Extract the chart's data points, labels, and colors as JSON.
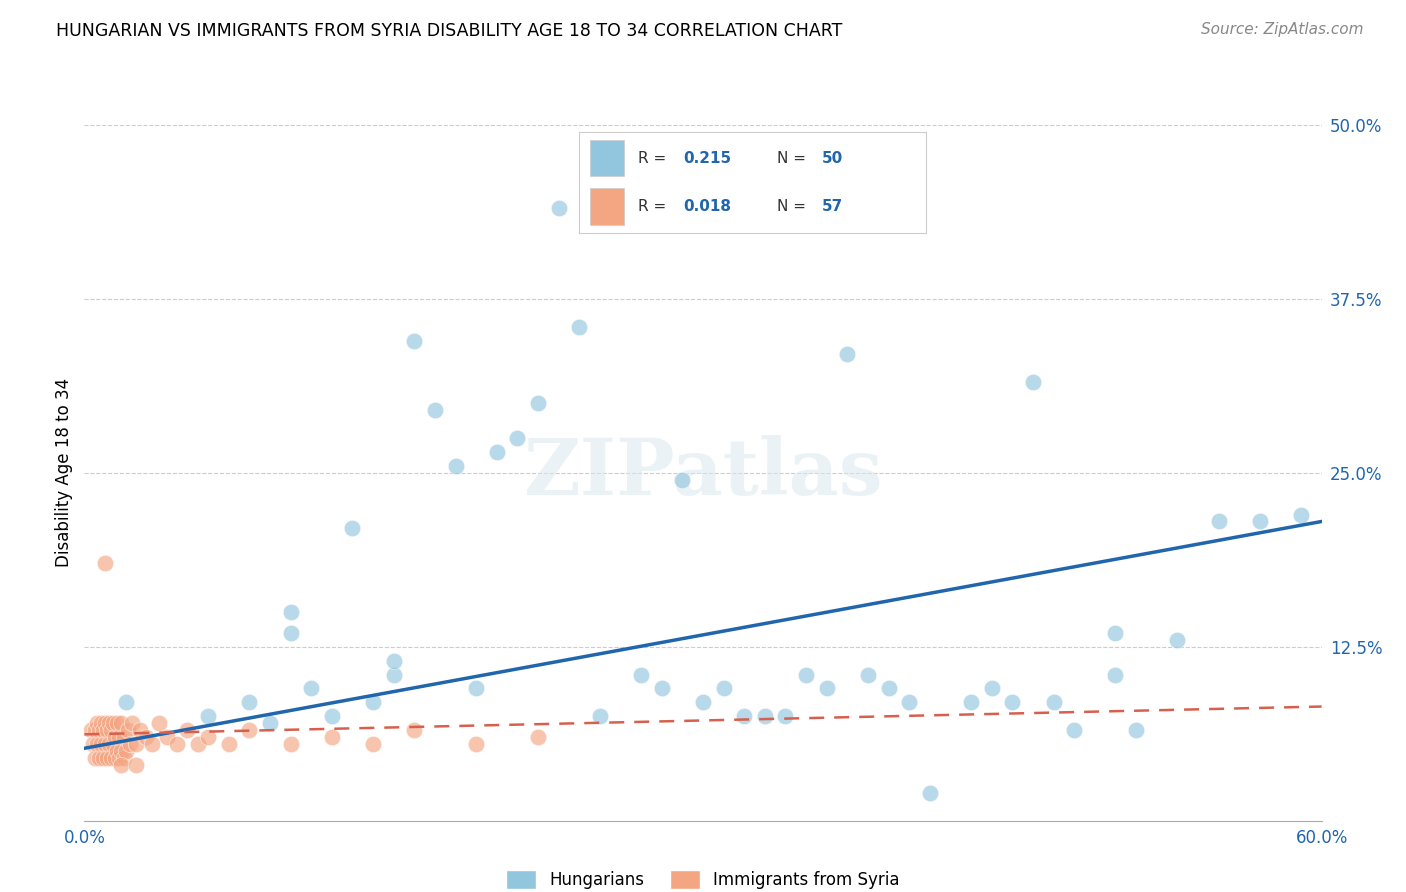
{
  "title": "HUNGARIAN VS IMMIGRANTS FROM SYRIA DISABILITY AGE 18 TO 34 CORRELATION CHART",
  "source": "Source: ZipAtlas.com",
  "ylabel": "Disability Age 18 to 34",
  "xlim": [
    0.0,
    0.6
  ],
  "ylim": [
    0.0,
    0.5
  ],
  "xticks": [
    0.0,
    0.1,
    0.2,
    0.3,
    0.4,
    0.5,
    0.6
  ],
  "xticklabels": [
    "0.0%",
    "",
    "",
    "",
    "",
    "",
    "60.0%"
  ],
  "yticks_right": [
    0.0,
    0.125,
    0.25,
    0.375,
    0.5
  ],
  "yticklabels_right": [
    "",
    "12.5%",
    "25.0%",
    "37.5%",
    "50.0%"
  ],
  "grid_yticks": [
    0.125,
    0.25,
    0.375,
    0.5
  ],
  "blue_color": "#92c5de",
  "blue_line_color": "#2166ac",
  "pink_color": "#f4a582",
  "pink_line_color": "#d6604d",
  "watermark": "ZIPatlas",
  "blue_scatter_x": [
    0.02,
    0.06,
    0.08,
    0.09,
    0.1,
    0.1,
    0.11,
    0.12,
    0.13,
    0.14,
    0.15,
    0.15,
    0.16,
    0.17,
    0.18,
    0.19,
    0.2,
    0.21,
    0.22,
    0.23,
    0.24,
    0.25,
    0.27,
    0.28,
    0.29,
    0.3,
    0.31,
    0.32,
    0.33,
    0.34,
    0.35,
    0.36,
    0.37,
    0.38,
    0.39,
    0.4,
    0.41,
    0.43,
    0.44,
    0.45,
    0.46,
    0.47,
    0.48,
    0.5,
    0.5,
    0.51,
    0.53,
    0.55,
    0.57,
    0.59
  ],
  "blue_scatter_y": [
    0.085,
    0.075,
    0.085,
    0.07,
    0.135,
    0.15,
    0.095,
    0.075,
    0.21,
    0.085,
    0.105,
    0.115,
    0.345,
    0.295,
    0.255,
    0.095,
    0.265,
    0.275,
    0.3,
    0.44,
    0.355,
    0.075,
    0.105,
    0.095,
    0.245,
    0.085,
    0.095,
    0.075,
    0.075,
    0.075,
    0.105,
    0.095,
    0.335,
    0.105,
    0.095,
    0.085,
    0.02,
    0.085,
    0.095,
    0.085,
    0.315,
    0.085,
    0.065,
    0.135,
    0.105,
    0.065,
    0.13,
    0.215,
    0.215,
    0.22
  ],
  "pink_scatter_x": [
    0.003,
    0.004,
    0.005,
    0.005,
    0.006,
    0.006,
    0.007,
    0.007,
    0.008,
    0.008,
    0.009,
    0.009,
    0.01,
    0.01,
    0.011,
    0.011,
    0.012,
    0.012,
    0.013,
    0.013,
    0.014,
    0.014,
    0.015,
    0.015,
    0.016,
    0.016,
    0.017,
    0.017,
    0.018,
    0.018,
    0.019,
    0.019,
    0.02,
    0.021,
    0.022,
    0.023,
    0.025,
    0.027,
    0.03,
    0.033,
    0.036,
    0.04,
    0.045,
    0.05,
    0.055,
    0.06,
    0.07,
    0.08,
    0.1,
    0.12,
    0.14,
    0.16,
    0.19,
    0.22,
    0.01,
    0.018,
    0.025
  ],
  "pink_scatter_y": [
    0.065,
    0.055,
    0.045,
    0.065,
    0.055,
    0.07,
    0.045,
    0.065,
    0.055,
    0.07,
    0.045,
    0.065,
    0.055,
    0.07,
    0.045,
    0.065,
    0.055,
    0.07,
    0.045,
    0.065,
    0.055,
    0.07,
    0.045,
    0.06,
    0.05,
    0.07,
    0.045,
    0.06,
    0.05,
    0.07,
    0.045,
    0.06,
    0.05,
    0.065,
    0.055,
    0.07,
    0.055,
    0.065,
    0.06,
    0.055,
    0.07,
    0.06,
    0.055,
    0.065,
    0.055,
    0.06,
    0.055,
    0.065,
    0.055,
    0.06,
    0.055,
    0.065,
    0.055,
    0.06,
    0.185,
    0.04,
    0.04
  ],
  "blue_line_x0": 0.0,
  "blue_line_x1": 0.6,
  "blue_line_y0": 0.052,
  "blue_line_y1": 0.215,
  "pink_line_x0": 0.0,
  "pink_line_x1": 0.6,
  "pink_line_y0": 0.062,
  "pink_line_y1": 0.082
}
